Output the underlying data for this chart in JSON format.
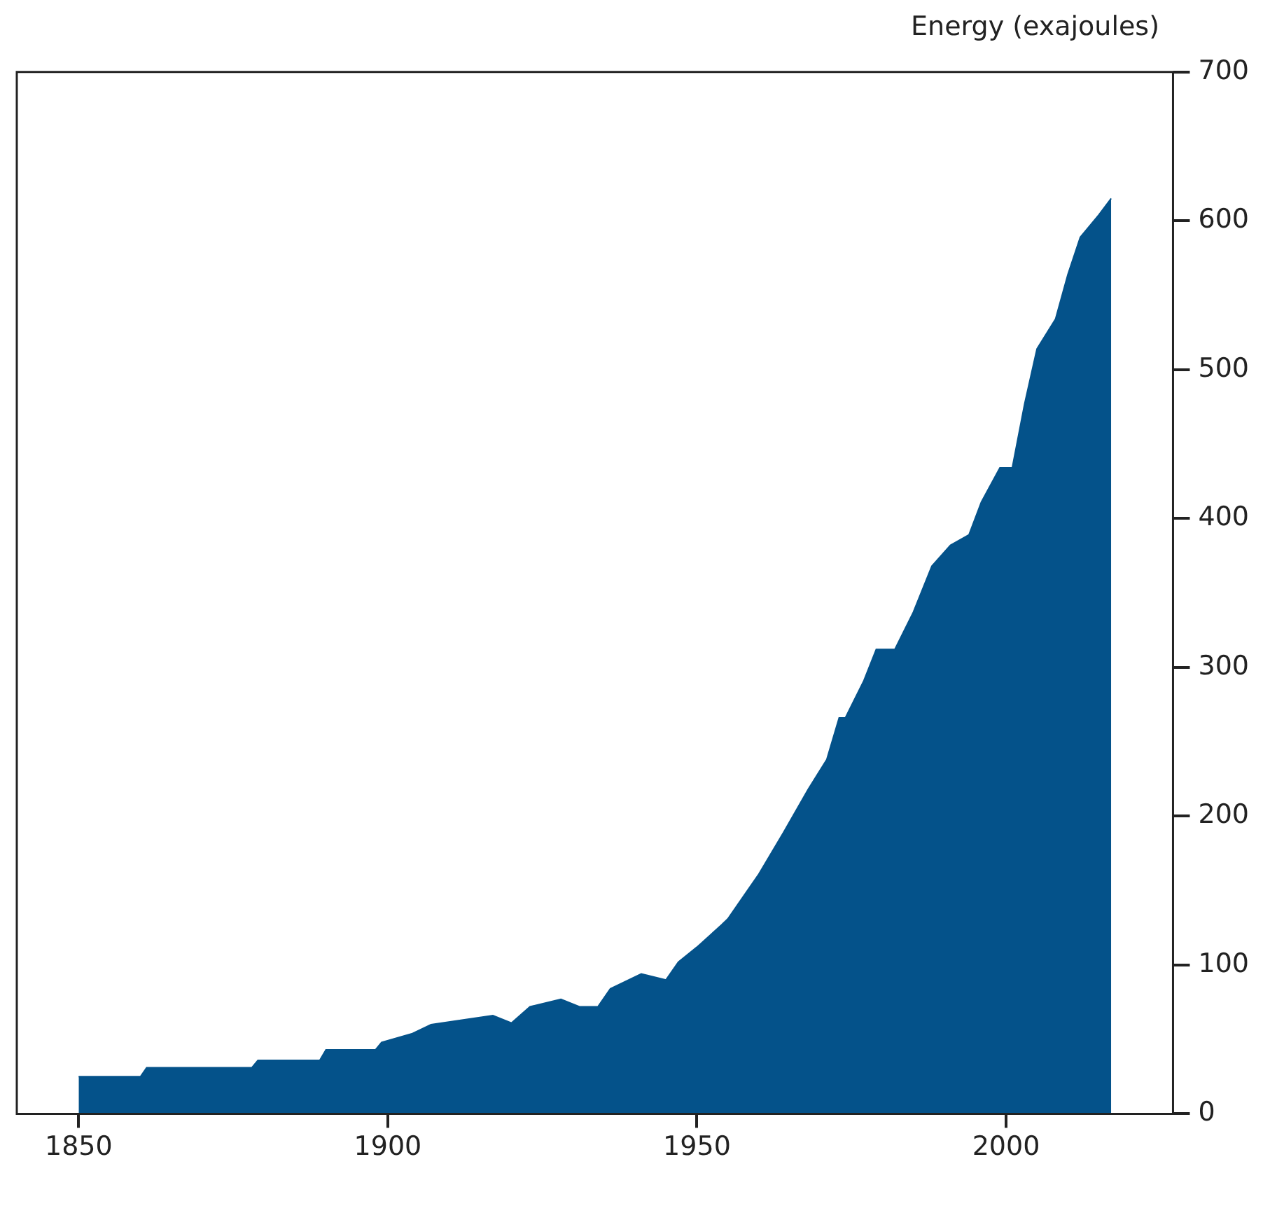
{
  "chart_data": {
    "type": "area",
    "ylabel": "Energy (exajoules)",
    "x": [
      1850,
      1860,
      1861,
      1878,
      1879,
      1889,
      1890,
      1898,
      1899,
      1904,
      1907,
      1912,
      1917,
      1920,
      1923,
      1928,
      1931,
      1934,
      1936,
      1941,
      1945,
      1947,
      1950,
      1954,
      1955,
      1960,
      1964,
      1968,
      1971,
      1973,
      1974,
      1977,
      1979,
      1982,
      1985,
      1988,
      1991,
      1994,
      1996,
      1999,
      2001,
      2003,
      2005,
      2008,
      2010,
      2012,
      2015,
      2017
    ],
    "values": [
      25,
      25,
      31,
      31,
      36,
      36,
      43,
      43,
      48,
      54,
      60,
      63,
      66,
      61,
      72,
      77,
      72,
      72,
      84,
      94,
      90,
      102,
      112,
      127,
      131,
      161,
      189,
      218,
      238,
      266,
      266,
      291,
      312,
      312,
      337,
      368,
      382,
      389,
      411,
      434,
      434,
      477,
      514,
      534,
      564,
      589,
      604,
      615
    ],
    "color": "#04528a",
    "xlim": [
      1840,
      2027
    ],
    "xticks": [
      1850,
      1900,
      1950,
      2000
    ],
    "ylim": [
      0,
      700
    ],
    "yticks": [
      0,
      100,
      200,
      300,
      400,
      500,
      600,
      700
    ],
    "grid": false,
    "legend": false
  }
}
